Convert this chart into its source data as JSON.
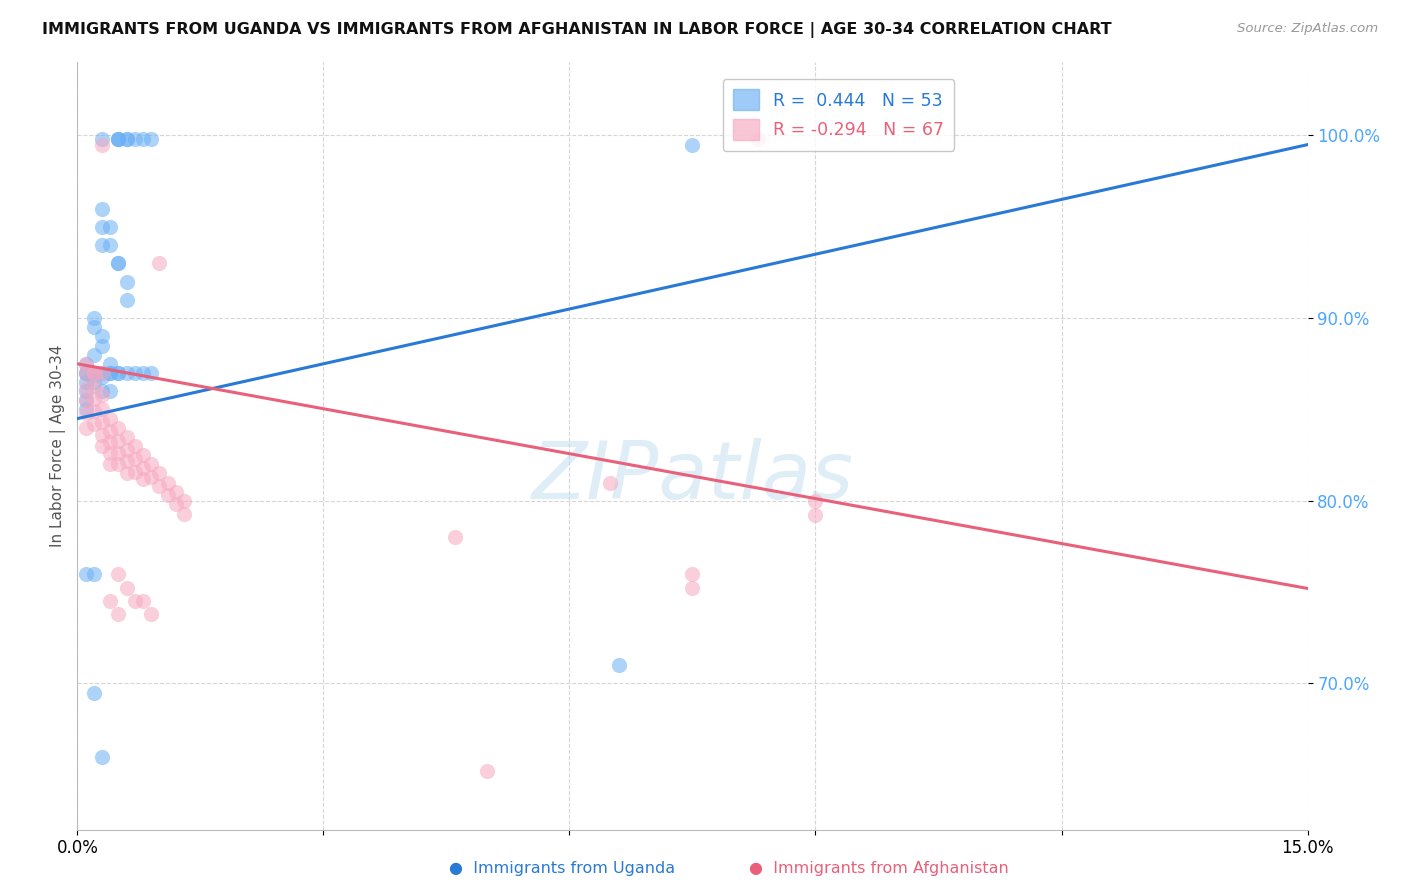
{
  "title": "IMMIGRANTS FROM UGANDA VS IMMIGRANTS FROM AFGHANISTAN IN LABOR FORCE | AGE 30-34 CORRELATION CHART",
  "source": "Source: ZipAtlas.com",
  "ylabel": "In Labor Force | Age 30-34",
  "xlim": [
    0.0,
    0.15
  ],
  "ylim": [
    0.62,
    1.04
  ],
  "yticks": [
    0.7,
    0.8,
    0.9,
    1.0
  ],
  "ytick_labels": [
    "70.0%",
    "80.0%",
    "90.0%",
    "100.0%"
  ],
  "color_uganda": "#6ab0f5",
  "color_afghanistan": "#f7a8c0",
  "color_uganda_line": "#2979d6",
  "color_afghanistan_line": "#e8607a",
  "uganda_line_x": [
    0.0,
    0.15
  ],
  "uganda_line_y": [
    0.845,
    0.995
  ],
  "afghanistan_line_x": [
    0.0,
    0.15
  ],
  "afghanistan_line_y": [
    0.875,
    0.752
  ],
  "uganda_scatter_x": [
    0.003,
    0.005,
    0.005,
    0.005,
    0.006,
    0.006,
    0.007,
    0.008,
    0.009,
    0.003,
    0.003,
    0.003,
    0.004,
    0.004,
    0.005,
    0.005,
    0.006,
    0.006,
    0.002,
    0.002,
    0.003,
    0.003,
    0.004,
    0.004,
    0.005,
    0.001,
    0.001,
    0.002,
    0.002,
    0.003,
    0.001,
    0.001,
    0.001,
    0.001,
    0.001,
    0.002,
    0.002,
    0.003,
    0.003,
    0.004,
    0.004,
    0.005,
    0.006,
    0.001,
    0.002,
    0.002,
    0.003,
    0.066,
    0.075,
    0.007,
    0.008,
    0.009
  ],
  "uganda_scatter_y": [
    0.998,
    0.998,
    0.998,
    0.998,
    0.998,
    0.998,
    0.998,
    0.998,
    0.998,
    0.96,
    0.95,
    0.94,
    0.95,
    0.94,
    0.93,
    0.93,
    0.92,
    0.91,
    0.9,
    0.895,
    0.89,
    0.885,
    0.875,
    0.87,
    0.87,
    0.875,
    0.87,
    0.88,
    0.87,
    0.87,
    0.87,
    0.865,
    0.86,
    0.855,
    0.85,
    0.87,
    0.865,
    0.868,
    0.86,
    0.87,
    0.86,
    0.87,
    0.87,
    0.76,
    0.76,
    0.695,
    0.66,
    0.71,
    0.995,
    0.87,
    0.87,
    0.87
  ],
  "afghanistan_scatter_x": [
    0.001,
    0.001,
    0.001,
    0.001,
    0.001,
    0.001,
    0.002,
    0.002,
    0.002,
    0.002,
    0.002,
    0.002,
    0.003,
    0.003,
    0.003,
    0.003,
    0.003,
    0.003,
    0.004,
    0.004,
    0.004,
    0.004,
    0.004,
    0.005,
    0.005,
    0.005,
    0.005,
    0.006,
    0.006,
    0.006,
    0.006,
    0.007,
    0.007,
    0.007,
    0.008,
    0.008,
    0.008,
    0.009,
    0.009,
    0.01,
    0.01,
    0.011,
    0.011,
    0.012,
    0.012,
    0.013,
    0.013,
    0.003,
    0.01,
    0.046,
    0.065,
    0.083,
    0.05,
    0.075,
    0.075,
    0.09,
    0.09,
    0.005,
    0.006,
    0.007,
    0.004,
    0.005,
    0.008,
    0.009
  ],
  "afghanistan_scatter_y": [
    0.875,
    0.87,
    0.862,
    0.855,
    0.848,
    0.84,
    0.87,
    0.863,
    0.856,
    0.849,
    0.842,
    0.87,
    0.858,
    0.85,
    0.843,
    0.836,
    0.83,
    0.87,
    0.845,
    0.838,
    0.832,
    0.826,
    0.82,
    0.84,
    0.833,
    0.826,
    0.82,
    0.835,
    0.828,
    0.822,
    0.815,
    0.83,
    0.823,
    0.816,
    0.825,
    0.818,
    0.812,
    0.82,
    0.813,
    0.815,
    0.808,
    0.81,
    0.803,
    0.805,
    0.798,
    0.8,
    0.793,
    0.995,
    0.93,
    0.78,
    0.81,
    0.998,
    0.652,
    0.76,
    0.752,
    0.8,
    0.792,
    0.76,
    0.752,
    0.745,
    0.745,
    0.738,
    0.745,
    0.738
  ]
}
